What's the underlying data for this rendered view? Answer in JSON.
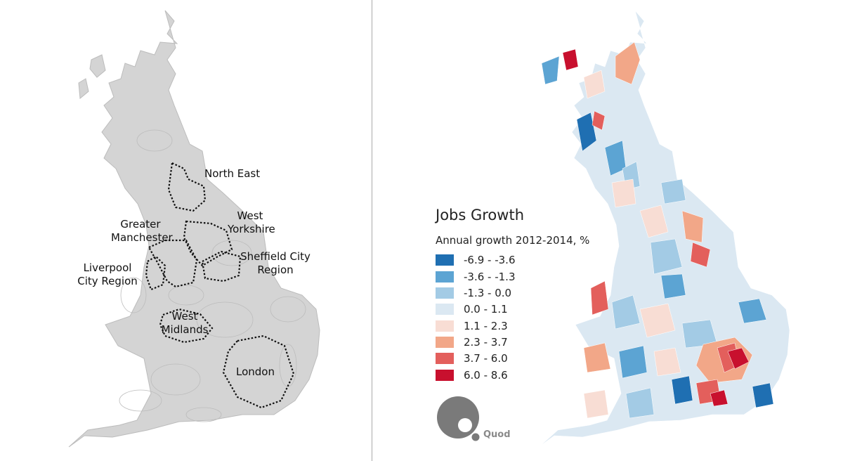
{
  "left_map": {
    "regions": [
      {
        "id": "north-east",
        "label_lines": [
          "North East"
        ]
      },
      {
        "id": "west-yorkshire",
        "label_lines": [
          "West",
          "Yorkshire"
        ]
      },
      {
        "id": "greater-manchester",
        "label_lines": [
          "Greater",
          "Manchester"
        ]
      },
      {
        "id": "sheffield",
        "label_lines": [
          "Sheffield City",
          "Region"
        ]
      },
      {
        "id": "liverpool",
        "label_lines": [
          "Liverpool",
          "City Region"
        ]
      },
      {
        "id": "west-midlands",
        "label_lines": [
          "West",
          "Midlands"
        ]
      },
      {
        "id": "london",
        "label_lines": [
          "London"
        ]
      }
    ],
    "land_color": "#d4d4d4",
    "boundary_color": "#111111"
  },
  "right_map": {
    "title": "Jobs Growth",
    "subtitle": "Annual growth 2012-2014, %",
    "legend": [
      {
        "label": "-6.9 - -3.6",
        "color": "#1f6fb2"
      },
      {
        "label": "-3.6 - -1.3",
        "color": "#5ca4d3"
      },
      {
        "label": "-1.3 - 0.0",
        "color": "#a3cbe5"
      },
      {
        "label": "0.0 - 1.1",
        "color": "#dbe8f2"
      },
      {
        "label": "1.1 - 2.3",
        "color": "#f8ddd4"
      },
      {
        "label": "2.3 - 3.7",
        "color": "#f2a788"
      },
      {
        "label": "3.7 - 6.0",
        "color": "#e35f5c"
      },
      {
        "label": "6.0 - 8.6",
        "color": "#c8102e"
      }
    ],
    "logo_text": "Quod"
  }
}
